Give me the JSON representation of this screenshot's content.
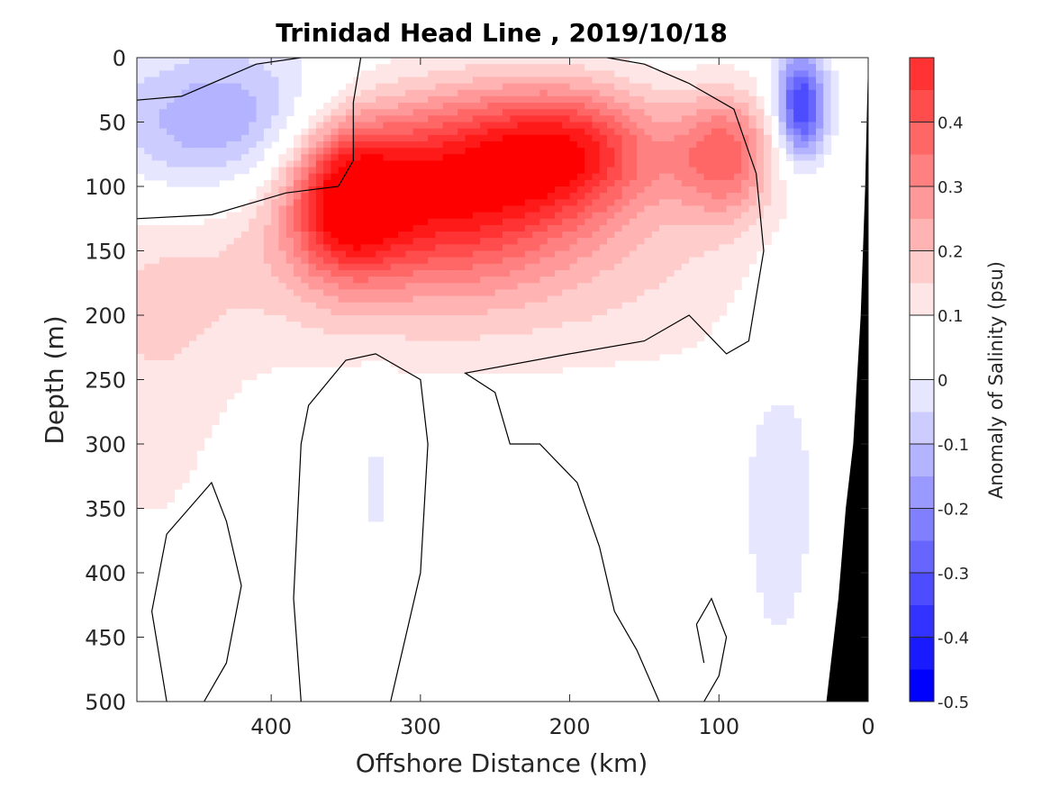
{
  "chart_data": {
    "type": "heatmap",
    "title": "Trinidad Head Line , 2019/10/18",
    "xlabel": "Offshore Distance (km)",
    "ylabel": "Depth (m)",
    "xlim": [
      490,
      0
    ],
    "ylim": [
      0,
      500
    ],
    "x_reversed": true,
    "y_reversed": true,
    "x_ticks": [
      400,
      300,
      200,
      100,
      0
    ],
    "y_ticks": [
      0,
      50,
      100,
      150,
      200,
      250,
      300,
      350,
      400,
      450,
      500
    ],
    "colorbar": {
      "label": "Anomaly of Salinity (psu)",
      "range": [
        -0.5,
        0.5
      ],
      "levels": [
        -0.5,
        -0.45,
        -0.4,
        -0.35,
        -0.3,
        -0.25,
        -0.2,
        -0.15,
        -0.1,
        -0.05,
        0,
        0.05,
        0.1,
        0.15,
        0.2,
        0.25,
        0.3,
        0.35,
        0.4,
        0.45,
        0.5
      ],
      "ticks": [
        0.4,
        0.3,
        0.2,
        0.1,
        0,
        -0.1,
        -0.2,
        -0.3,
        -0.4,
        -0.5
      ],
      "tick_labels": [
        "0.4",
        "0.3",
        "0.2",
        "0.1",
        "0",
        "-0.1",
        "-0.2",
        "-0.3",
        "-0.4",
        "-0.5"
      ],
      "colors": [
        "#0000ff",
        "#1a1aff",
        "#3333ff",
        "#4d4dff",
        "#6666ff",
        "#8080ff",
        "#9999ff",
        "#b3b3ff",
        "#ccccff",
        "#e6e6ff",
        "#ffffff",
        "#ffffff",
        "#ffe6e6",
        "#ffcccc",
        "#ffb3b3",
        "#ff9999",
        "#ff8080",
        "#ff6666",
        "#ff4d4d",
        "#ff3333",
        "#ff1a1a",
        "#ff0000"
      ]
    },
    "features": [
      {
        "name": "offshore-high-salinity-core",
        "x": 290,
        "depth": 100,
        "value": 0.46,
        "sx": 70,
        "sz": 50
      },
      {
        "name": "west-high-salinity-core",
        "x": 350,
        "depth": 110,
        "value": 0.33,
        "sx": 25,
        "sz": 40
      },
      {
        "name": "central-high-salinity-lobe",
        "x": 200,
        "depth": 70,
        "value": 0.34,
        "sx": 45,
        "sz": 35
      },
      {
        "name": "shelf-break-high-salinity-lobe",
        "x": 95,
        "depth": 75,
        "value": 0.3,
        "sx": 25,
        "sz": 35
      },
      {
        "name": "broad-subsurface-positive-layer",
        "x": 260,
        "depth": 170,
        "value": 0.1,
        "sx": 200,
        "sz": 60
      },
      {
        "name": "far-offshore-deep-positive",
        "x": 480,
        "depth": 250,
        "value": 0.07,
        "sx": 40,
        "sz": 120
      },
      {
        "name": "offshore-low-salinity-pool",
        "x": 430,
        "depth": 55,
        "value": -0.24,
        "sx": 60,
        "sz": 45
      },
      {
        "name": "nearshore-low-salinity-core",
        "x": 45,
        "depth": 38,
        "value": -0.42,
        "sx": 12,
        "sz": 30
      },
      {
        "name": "nearshore-deep-negative",
        "x": 60,
        "depth": 320,
        "value": -0.07,
        "sx": 25,
        "sz": 150
      },
      {
        "name": "deep-central-negative-patch",
        "x": 330,
        "depth": 330,
        "value": -0.06,
        "sx": 10,
        "sz": 60
      }
    ],
    "zero_contours": [
      {
        "name": "upper-positive-boundary",
        "points": [
          [
            490,
            33
          ],
          [
            460,
            30
          ],
          [
            410,
            5
          ],
          [
            380,
            0
          ],
          [
            340,
            0
          ],
          [
            345,
            35
          ],
          [
            345,
            80
          ],
          [
            355,
            100
          ],
          [
            390,
            105
          ],
          [
            440,
            122
          ],
          [
            490,
            125
          ]
        ]
      },
      {
        "name": "deep-left-negative-loop",
        "points": [
          [
            470,
            500
          ],
          [
            480,
            430
          ],
          [
            470,
            370
          ],
          [
            440,
            330
          ],
          [
            430,
            360
          ],
          [
            420,
            410
          ],
          [
            430,
            470
          ],
          [
            445,
            500
          ]
        ]
      },
      {
        "name": "deep-mid-lobe",
        "points": [
          [
            380,
            500
          ],
          [
            385,
            420
          ],
          [
            380,
            300
          ],
          [
            375,
            270
          ],
          [
            350,
            235
          ],
          [
            330,
            230
          ],
          [
            300,
            250
          ],
          [
            295,
            300
          ],
          [
            300,
            400
          ],
          [
            320,
            500
          ]
        ]
      },
      {
        "name": "right-deep-boundary",
        "points": [
          [
            140,
            500
          ],
          [
            155,
            460
          ],
          [
            170,
            430
          ],
          [
            180,
            380
          ],
          [
            195,
            330
          ],
          [
            220,
            300
          ],
          [
            240,
            300
          ],
          [
            250,
            260
          ],
          [
            270,
            245
          ],
          [
            200,
            230
          ],
          [
            150,
            220
          ],
          [
            120,
            200
          ],
          [
            95,
            230
          ],
          [
            80,
            220
          ],
          [
            70,
            150
          ],
          [
            75,
            90
          ],
          [
            90,
            40
          ],
          [
            120,
            20
          ],
          [
            150,
            5
          ],
          [
            175,
            0
          ]
        ]
      },
      {
        "name": "deep-right-small-loop",
        "points": [
          [
            110,
            470
          ],
          [
            115,
            440
          ],
          [
            105,
            420
          ],
          [
            95,
            450
          ],
          [
            100,
            480
          ],
          [
            110,
            500
          ]
        ]
      }
    ],
    "bathymetry": {
      "name": "continental-slope",
      "polygon": [
        [
          0,
          0
        ],
        [
          0,
          500
        ],
        [
          28,
          500
        ],
        [
          25,
          470
        ],
        [
          20,
          420
        ],
        [
          15,
          350
        ],
        [
          10,
          300
        ],
        [
          5,
          200
        ],
        [
          2,
          100
        ],
        [
          0,
          0
        ]
      ]
    }
  }
}
